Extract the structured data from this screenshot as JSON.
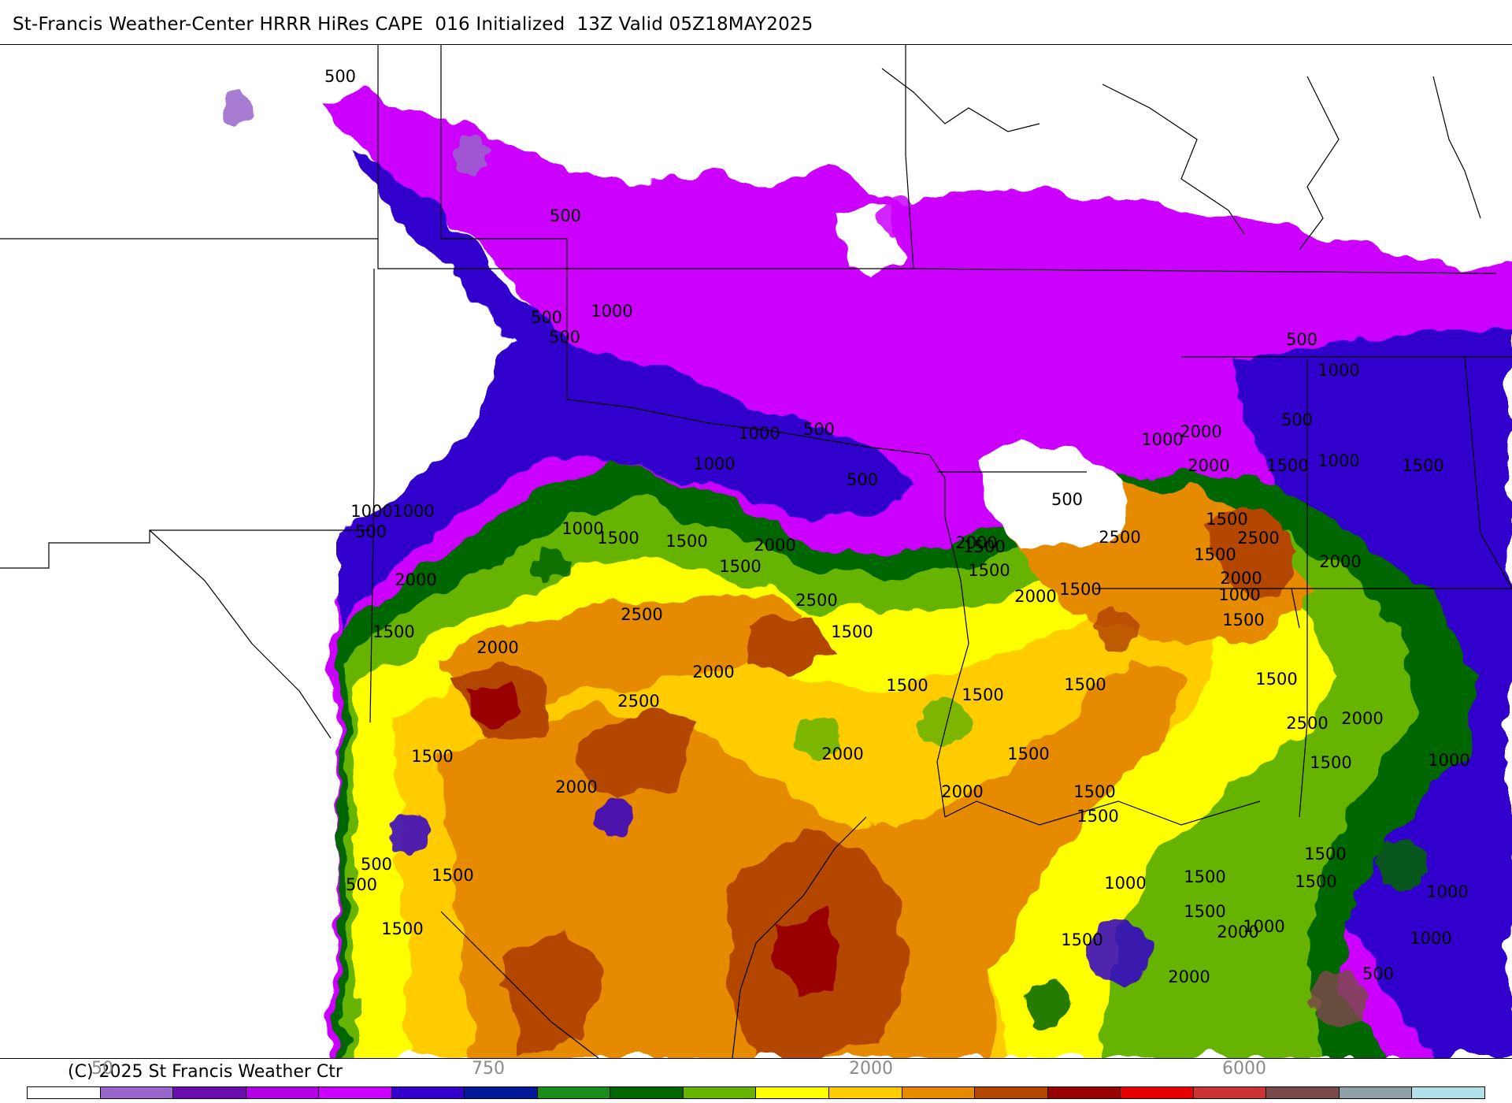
{
  "title": "St-Francis Weather-Center HRRR HiRes CAPE  016 Initialized  13Z Valid 05Z18MAY2025",
  "copyright": "(C) 2025 St Francis Weather Ctr",
  "legend": {
    "colors": [
      "#ffffff",
      "#9966cc",
      "#6a0dad",
      "#b300e6",
      "#cc00ff",
      "#3300cc",
      "#001a99",
      "#1a8c1a",
      "#006600",
      "#66b300",
      "#ffff00",
      "#ffcc00",
      "#e68a00",
      "#b34700",
      "#990000",
      "#e60000",
      "#cc3333",
      "#7a4a4a",
      "#8fa0a8",
      "#b0e0e8"
    ],
    "tick_labels": [
      "50",
      "750",
      "2000",
      "6000"
    ]
  },
  "contour_labels": [
    "500",
    "500",
    "500",
    "500",
    "1000",
    "1000",
    "1000",
    "500",
    "500",
    "1000",
    "1000",
    "1500",
    "1500",
    "2000",
    "1500",
    "2000",
    "2500",
    "2500",
    "2000",
    "2000",
    "2500",
    "1500",
    "1500",
    "1500",
    "1500",
    "2000",
    "1000",
    "1500",
    "500",
    "1500",
    "2000",
    "1500",
    "2000",
    "1500",
    "2000",
    "1500",
    "2000",
    "1500",
    "2500",
    "2000",
    "2000",
    "1000",
    "500",
    "1500",
    "1500",
    "1500",
    "1500",
    "1000",
    "1500",
    "1500",
    "500",
    "2000",
    "2500",
    "2000",
    "500",
    "1000",
    "1000",
    "1500",
    "2500",
    "2000",
    "1500",
    "1500",
    "1500",
    "1500",
    "1000",
    "1000",
    "1500",
    "1500",
    "1000",
    "1500",
    "1500",
    "1000",
    "2000",
    "2000",
    "1000",
    "500",
    "500",
    "1500",
    "500"
  ]
}
